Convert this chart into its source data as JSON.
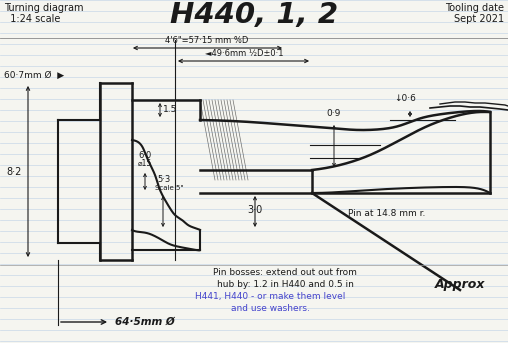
{
  "title_left": "Turning diagram\n1:24 scale",
  "title_center": "H440, 1, 2",
  "title_right": "Tooling date\nSept 2021",
  "bg_color": "#f5f5f0",
  "line_color": "#1a1a1a",
  "ruled_color": "#c8d8e8",
  "dim_46": "4'6\"=57·15 mm %D",
  "dim_496": "◄49·6mm ½D±0·1",
  "dim_607": "60·7mm Ø  ▶",
  "dim_645": "◄― 64·5mm Ø",
  "dim_82": "8·2",
  "dim_15": "1.5",
  "dim_60": "6·0\nØ15",
  "dim_53": "5·3\nScale 5\"",
  "dim_30": "3·0",
  "dim_09": "0·9",
  "dim_06": "↓0·6",
  "pin_label": "Pin at 14.8 mm r.",
  "note1": "Pin bosses: extend out out from",
  "note2": "hub by: 1.2 in H440 and 0.5 in",
  "note3": "H441, H440 - or make them level",
  "note4": "and use washers.",
  "approx": "Approx"
}
